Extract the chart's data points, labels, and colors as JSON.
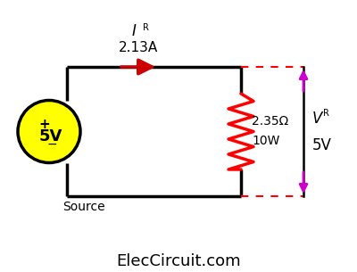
{
  "bg_color": "#ffffff",
  "circuit_color": "#000000",
  "resistor_color": "#ff0000",
  "arrow_color": "#cc0000",
  "voltage_arrow_color": "#cc00cc",
  "dashed_line_color": "#ff0000",
  "source_fill": "#ffff00",
  "source_label": "5V",
  "source_sublabel": "Source",
  "source_plus": "+",
  "source_minus": "−",
  "current_label": "I",
  "current_sub": "R",
  "current_value": "2.13A",
  "resistor_label1": "2.35Ω",
  "resistor_label2": "10W",
  "voltage_label": "V",
  "voltage_sub": "R",
  "voltage_value": "5V",
  "footer": "ElecCircuit.com",
  "lw": 2.5,
  "figw": 4.0,
  "figh": 3.05,
  "dpi": 100
}
